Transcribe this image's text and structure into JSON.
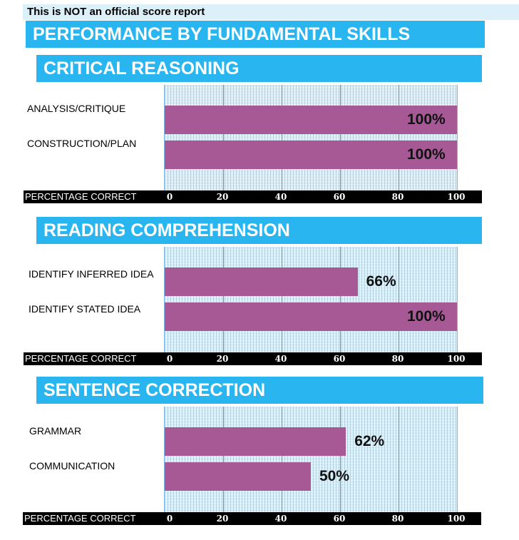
{
  "notice": "This is NOT an official score report",
  "title": "PERFORMANCE BY FUNDAMENTAL SKILLS",
  "axis_title": "PERCENTAGE CORRECT",
  "chart_data": [
    {
      "type": "bar",
      "orientation": "horizontal",
      "title": "CRITICAL REASONING",
      "categories": [
        "ANALYSIS/CRITIQUE",
        "CONSTRUCTION/PLAN"
      ],
      "values": [
        100,
        100
      ],
      "value_labels": [
        "100%",
        "100%"
      ],
      "xlabel": "PERCENTAGE CORRECT",
      "xlim": [
        0,
        100
      ],
      "ticks": [
        "0",
        "20",
        "40",
        "60",
        "80",
        "100"
      ],
      "bar_color": "#a65995",
      "grid": true
    },
    {
      "type": "bar",
      "orientation": "horizontal",
      "title": "READING COMPREHENSION",
      "categories": [
        "IDENTIFY INFERRED IDEA",
        "IDENTIFY STATED IDEA"
      ],
      "values": [
        66,
        100
      ],
      "value_labels": [
        "66%",
        "100%"
      ],
      "xlabel": "PERCENTAGE CORRECT",
      "xlim": [
        0,
        100
      ],
      "ticks": [
        "0",
        "20",
        "40",
        "60",
        "80",
        "100"
      ],
      "bar_color": "#a65995",
      "grid": true
    },
    {
      "type": "bar",
      "orientation": "horizontal",
      "title": "SENTENCE CORRECTION",
      "categories": [
        "GRAMMAR",
        "COMMUNICATION"
      ],
      "values": [
        62,
        50
      ],
      "value_labels": [
        "62%",
        "50%"
      ],
      "xlabel": "PERCENTAGE CORRECT",
      "xlim": [
        0,
        100
      ],
      "ticks": [
        "0",
        "20",
        "40",
        "60",
        "80",
        "100"
      ],
      "bar_color": "#a65995",
      "grid": true
    }
  ]
}
